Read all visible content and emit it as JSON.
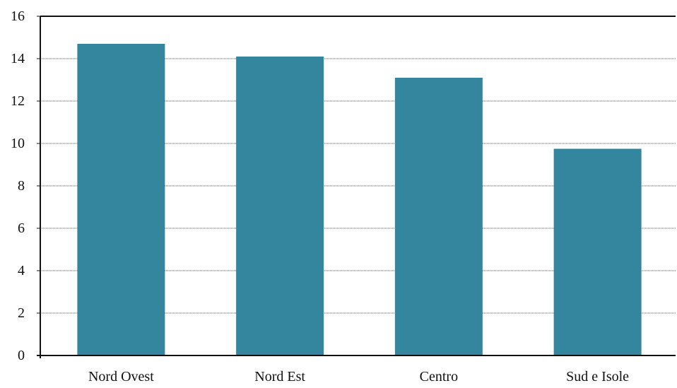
{
  "chart_data": {
    "type": "bar",
    "title": "",
    "xlabel": "",
    "ylabel": "",
    "categories": [
      "Nord Ovest",
      "Nord Est",
      "Centro",
      "Sud e Isole"
    ],
    "values": [
      14.7,
      14.1,
      13.1,
      9.75
    ],
    "ylim": [
      0,
      16
    ],
    "yticks": [
      "0",
      "2",
      "4",
      "6",
      "8",
      "10",
      "12",
      "14",
      "16"
    ],
    "grid": true,
    "legend": "none",
    "bar_color": "#33869e",
    "grid_color": "#555555",
    "axis_color": "#111111"
  }
}
